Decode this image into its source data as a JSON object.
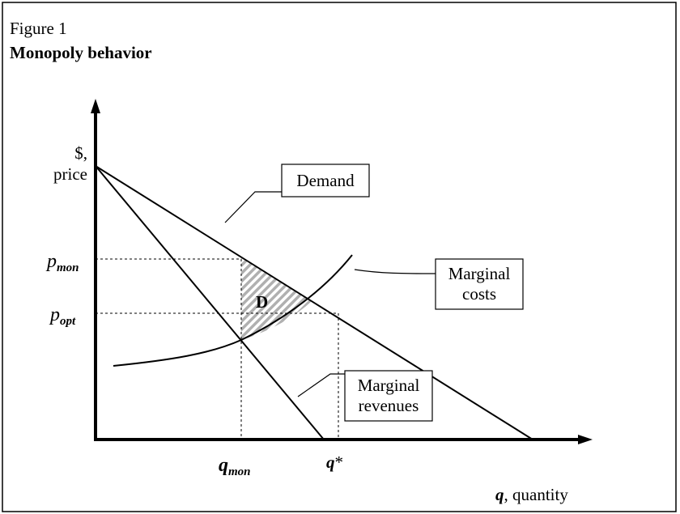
{
  "figure": {
    "label": "Figure 1",
    "title": "Monopoly behavior"
  },
  "axes": {
    "y_label": [
      "$,",
      "price"
    ],
    "x_label": {
      "base": "q",
      "rest": ", quantity"
    }
  },
  "ticks": {
    "p_mon": {
      "base": "p",
      "sub": "mon"
    },
    "p_opt": {
      "base": "p",
      "sub": "opt"
    },
    "q_mon": {
      "base": "q",
      "sub": "mon"
    },
    "q_star": {
      "base": "q",
      "suffix": "*"
    }
  },
  "curves": {
    "demand": [
      "Demand"
    ],
    "marginal_costs": [
      "Marginal",
      "costs"
    ],
    "marginal_revenues": [
      "Marginal",
      "revenues"
    ]
  },
  "area": {
    "label": "D"
  }
}
